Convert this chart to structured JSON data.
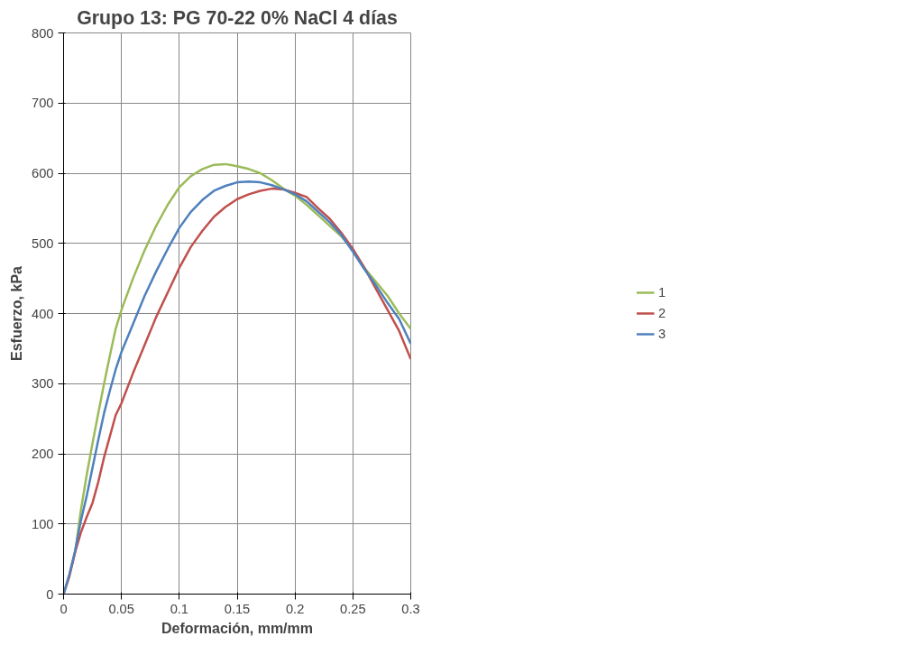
{
  "chart_data": {
    "type": "line",
    "title": "Grupo 13: PG 70-22 0% NaCl 4 días",
    "xlabel": "Deformación, mm/mm",
    "ylabel": "Esfuerzo, kPa",
    "x": [
      0,
      0.005,
      0.01,
      0.015,
      0.02,
      0.025,
      0.03,
      0.035,
      0.04,
      0.045,
      0.05,
      0.06,
      0.07,
      0.08,
      0.09,
      0.1,
      0.11,
      0.12,
      0.13,
      0.14,
      0.15,
      0.16,
      0.17,
      0.18,
      0.19,
      0.2,
      0.21,
      0.22,
      0.23,
      0.24,
      0.25,
      0.26,
      0.27,
      0.28,
      0.29,
      0.3
    ],
    "series": [
      {
        "name": "1",
        "color": "#9bbb59",
        "values": [
          0,
          28,
          60,
          120,
          170,
          215,
          258,
          300,
          340,
          378,
          405,
          450,
          490,
          525,
          555,
          580,
          596,
          606,
          612,
          613,
          610,
          606,
          600,
          590,
          578,
          568,
          555,
          540,
          525,
          510,
          490,
          465,
          445,
          425,
          400,
          378
        ]
      },
      {
        "name": "2",
        "color": "#c0504d",
        "values": [
          0,
          25,
          60,
          88,
          110,
          130,
          160,
          195,
          225,
          255,
          272,
          315,
          355,
          395,
          430,
          465,
          495,
          518,
          538,
          552,
          563,
          570,
          575,
          578,
          577,
          572,
          566,
          550,
          535,
          515,
          492,
          465,
          435,
          405,
          375,
          335
        ]
      },
      {
        "name": "3",
        "color": "#4f81bd",
        "values": [
          0,
          28,
          62,
          105,
          140,
          180,
          220,
          258,
          290,
          320,
          345,
          385,
          425,
          460,
          492,
          522,
          545,
          562,
          575,
          582,
          587,
          588,
          587,
          583,
          577,
          570,
          560,
          545,
          530,
          512,
          488,
          463,
          440,
          415,
          392,
          357
        ]
      }
    ],
    "xlim": [
      0,
      0.3
    ],
    "xticks": [
      0,
      0.05,
      0.1,
      0.15,
      0.2,
      0.25,
      0.3
    ],
    "ylim": [
      0,
      800
    ],
    "yticks": [
      0,
      100,
      200,
      300,
      400,
      500,
      600,
      700,
      800
    ],
    "grid": true,
    "legend": "right",
    "marker": "none",
    "line_style": "solid"
  }
}
